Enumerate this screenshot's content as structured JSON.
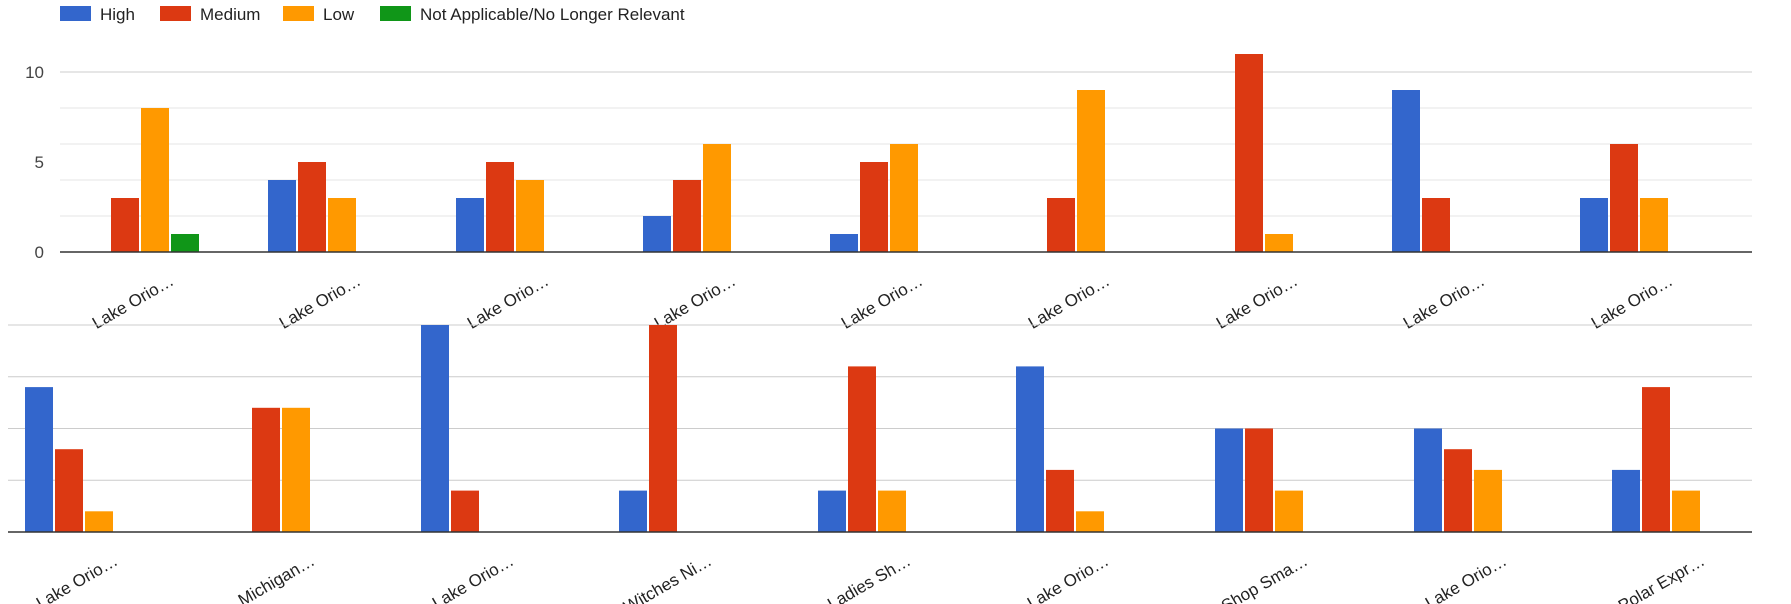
{
  "chart_data": [
    {
      "type": "bar",
      "legend_position": "top-left",
      "grid": true,
      "ylim": [
        0,
        11
      ],
      "yticks": [
        "0",
        "5",
        "10"
      ],
      "categories": [
        "Lake Orio…",
        "Lake Orio…",
        "Lake Orio…",
        "Lake Orio…",
        "Lake Orio…",
        "Lake Orio…",
        "Lake Orio…",
        "Lake Orio…",
        "Lake Orio…"
      ],
      "series": [
        {
          "name": "High",
          "color": "#3366cc",
          "values": [
            0,
            4,
            3,
            2,
            1,
            0,
            0,
            9,
            3
          ]
        },
        {
          "name": "Medium",
          "color": "#dc3912",
          "values": [
            3,
            5,
            5,
            4,
            5,
            3,
            11,
            3,
            6
          ]
        },
        {
          "name": "Low",
          "color": "#ff9900",
          "values": [
            8,
            3,
            4,
            6,
            6,
            9,
            1,
            0,
            3
          ]
        },
        {
          "name": "Not Applicable/No Longer Relevant",
          "color": "#109618",
          "values": [
            1,
            0,
            0,
            0,
            0,
            0,
            0,
            0,
            0
          ]
        }
      ]
    },
    {
      "type": "bar",
      "grid": true,
      "ylim": [
        0,
        10
      ],
      "categories": [
        "Lake Orio…",
        "Michigan…",
        "Lake Orio…",
        "Witches Ni…",
        "Ladies Sh…",
        "Lake Orio…",
        "Shop Sma…",
        "Lake Orio…",
        "Polar Expr…"
      ],
      "series": [
        {
          "name": "High",
          "color": "#3366cc",
          "values": [
            7,
            0,
            10,
            2,
            2,
            8,
            5,
            5,
            3
          ]
        },
        {
          "name": "Medium",
          "color": "#dc3912",
          "values": [
            4,
            6,
            2,
            10,
            8,
            3,
            5,
            4,
            7
          ]
        },
        {
          "name": "Low",
          "color": "#ff9900",
          "values": [
            1,
            6,
            0,
            0,
            2,
            1,
            2,
            3,
            2
          ]
        },
        {
          "name": "Not Applicable/No Longer Relevant",
          "color": "#109618",
          "values": [
            0,
            0,
            0,
            0,
            0,
            0,
            0,
            0,
            0
          ]
        }
      ]
    }
  ]
}
